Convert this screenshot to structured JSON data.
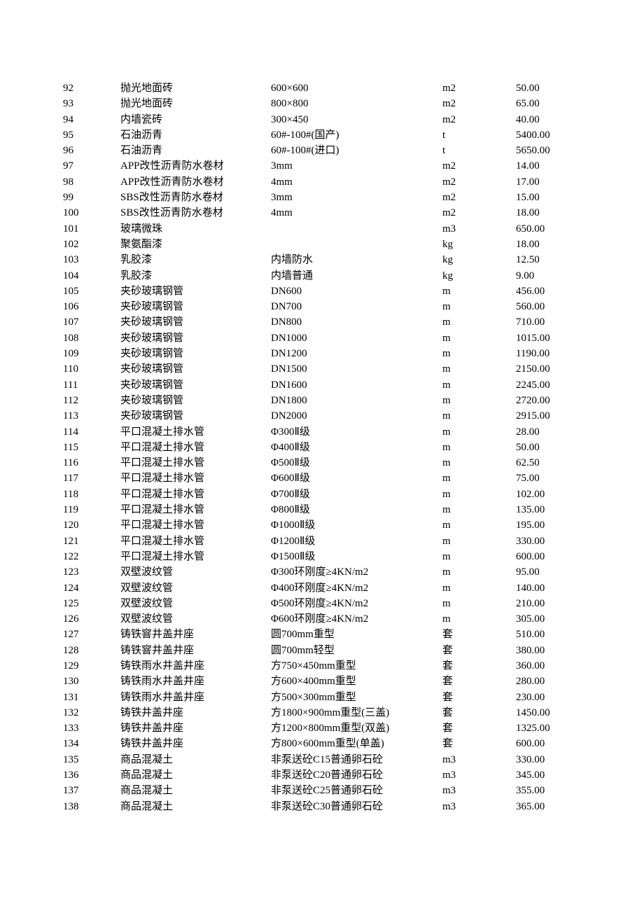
{
  "table": {
    "columns": [
      {
        "key": "id",
        "class": "col-id"
      },
      {
        "key": "name",
        "class": "col-name"
      },
      {
        "key": "spec",
        "class": "col-spec"
      },
      {
        "key": "unit",
        "class": "col-unit"
      },
      {
        "key": "price",
        "class": "col-price"
      }
    ],
    "rows": [
      {
        "id": "92",
        "name": "抛光地面砖",
        "spec": "600×600",
        "unit": "m2",
        "price": "50.00"
      },
      {
        "id": "93",
        "name": "抛光地面砖",
        "spec": "800×800",
        "unit": "m2",
        "price": "65.00"
      },
      {
        "id": "94",
        "name": "内墙瓷砖",
        "spec": "300×450",
        "unit": "m2",
        "price": "40.00"
      },
      {
        "id": "95",
        "name": "石油沥青",
        "spec": "60#-100#(国产)",
        "unit": "t",
        "price": "5400.00"
      },
      {
        "id": "96",
        "name": "石油沥青",
        "spec": "60#-100#(进口)",
        "unit": "t",
        "price": "5650.00"
      },
      {
        "id": "97",
        "name": "APP改性沥青防水卷材",
        "spec": "3mm",
        "unit": "m2",
        "price": "14.00"
      },
      {
        "id": "98",
        "name": "APP改性沥青防水卷材",
        "spec": "4mm",
        "unit": "m2",
        "price": "17.00"
      },
      {
        "id": "99",
        "name": "SBS改性沥青防水卷材",
        "spec": "3mm",
        "unit": "m2",
        "price": "15.00"
      },
      {
        "id": "100",
        "name": "SBS改性沥青防水卷材",
        "spec": "4mm",
        "unit": "m2",
        "price": "18.00"
      },
      {
        "id": "101",
        "name": "玻璃微珠",
        "spec": "",
        "unit": "m3",
        "price": "650.00"
      },
      {
        "id": "102",
        "name": "聚氨酯漆",
        "spec": "",
        "unit": "kg",
        "price": "18.00"
      },
      {
        "id": "103",
        "name": "乳胶漆",
        "spec": "内墙防水",
        "unit": "kg",
        "price": "12.50"
      },
      {
        "id": "104",
        "name": "乳胶漆",
        "spec": "内墙普通",
        "unit": "kg",
        "price": "9.00"
      },
      {
        "id": "105",
        "name": "夹砂玻璃钢管",
        "spec": "DN600",
        "unit": "m",
        "price": "456.00"
      },
      {
        "id": "106",
        "name": "夹砂玻璃钢管",
        "spec": "DN700",
        "unit": "m",
        "price": "560.00"
      },
      {
        "id": "107",
        "name": "夹砂玻璃钢管",
        "spec": "DN800",
        "unit": "m",
        "price": "710.00"
      },
      {
        "id": "108",
        "name": "夹砂玻璃钢管",
        "spec": "DN1000",
        "unit": "m",
        "price": "1015.00"
      },
      {
        "id": "109",
        "name": "夹砂玻璃钢管",
        "spec": "DN1200",
        "unit": "m",
        "price": "1190.00"
      },
      {
        "id": "110",
        "name": "夹砂玻璃钢管",
        "spec": "DN1500",
        "unit": "m",
        "price": "2150.00"
      },
      {
        "id": "111",
        "name": "夹砂玻璃钢管",
        "spec": "DN1600",
        "unit": "m",
        "price": "2245.00"
      },
      {
        "id": "112",
        "name": "夹砂玻璃钢管",
        "spec": "DN1800",
        "unit": "m",
        "price": "2720.00"
      },
      {
        "id": "113",
        "name": "夹砂玻璃钢管",
        "spec": "DN2000",
        "unit": "m",
        "price": "2915.00"
      },
      {
        "id": "114",
        "name": "平口混凝土排水管",
        "spec": "Φ300Ⅱ级",
        "unit": "m",
        "price": "28.00"
      },
      {
        "id": "115",
        "name": "平口混凝土排水管",
        "spec": "Φ400Ⅱ级",
        "unit": "m",
        "price": "50.00"
      },
      {
        "id": "116",
        "name": "平口混凝土排水管",
        "spec": "Φ500Ⅱ级",
        "unit": "m",
        "price": "62.50"
      },
      {
        "id": "117",
        "name": "平口混凝土排水管",
        "spec": "Φ600Ⅱ级",
        "unit": "m",
        "price": "75.00"
      },
      {
        "id": "118",
        "name": "平口混凝土排水管",
        "spec": "Φ700Ⅱ级",
        "unit": "m",
        "price": "102.00"
      },
      {
        "id": "119",
        "name": "平口混凝土排水管",
        "spec": "Φ800Ⅱ级",
        "unit": "m",
        "price": "135.00"
      },
      {
        "id": "120",
        "name": "平口混凝土排水管",
        "spec": "Φ1000Ⅱ级",
        "unit": "m",
        "price": "195.00"
      },
      {
        "id": "121",
        "name": "平口混凝土排水管",
        "spec": "Φ1200Ⅱ级",
        "unit": "m",
        "price": "330.00"
      },
      {
        "id": "122",
        "name": "平口混凝土排水管",
        "spec": "Φ1500Ⅱ级",
        "unit": "m",
        "price": "600.00"
      },
      {
        "id": "123",
        "name": "双壁波纹管",
        "spec": "Φ300环刚度≥4KN/m2",
        "unit": "m",
        "price": "95.00"
      },
      {
        "id": "124",
        "name": "双壁波纹管",
        "spec": "Φ400环刚度≥4KN/m2",
        "unit": "m",
        "price": "140.00"
      },
      {
        "id": "125",
        "name": "双壁波纹管",
        "spec": "Φ500环刚度≥4KN/m2",
        "unit": "m",
        "price": "210.00"
      },
      {
        "id": "126",
        "name": "双壁波纹管",
        "spec": "Φ600环刚度≥4KN/m2",
        "unit": "m",
        "price": "305.00"
      },
      {
        "id": "127",
        "name": "铸铁窨井盖井座",
        "spec": "圆700mm重型",
        "unit": "套",
        "price": "510.00"
      },
      {
        "id": "128",
        "name": "铸铁窨井盖井座",
        "spec": "圆700mm轻型",
        "unit": "套",
        "price": "380.00"
      },
      {
        "id": "129",
        "name": "铸铁雨水井盖井座",
        "spec": "方750×450mm重型",
        "unit": "套",
        "price": "360.00"
      },
      {
        "id": "130",
        "name": "铸铁雨水井盖井座",
        "spec": "方600×400mm重型",
        "unit": "套",
        "price": "280.00"
      },
      {
        "id": "131",
        "name": "铸铁雨水井盖井座",
        "spec": "方500×300mm重型",
        "unit": "套",
        "price": "230.00"
      },
      {
        "id": "132",
        "name": "铸铁井盖井座",
        "spec": "方1800×900mm重型(三盖)",
        "unit": "套",
        "price": "1450.00"
      },
      {
        "id": "133",
        "name": "铸铁井盖井座",
        "spec": "方1200×800mm重型(双盖)",
        "unit": "套",
        "price": "1325.00"
      },
      {
        "id": "134",
        "name": "铸铁井盖井座",
        "spec": "方800×600mm重型(单盖)",
        "unit": "套",
        "price": "600.00"
      },
      {
        "id": "135",
        "name": "商品混凝土",
        "spec": "非泵送砼C15普通卵石砼",
        "unit": "m3",
        "price": "330.00"
      },
      {
        "id": "136",
        "name": "商品混凝土",
        "spec": "非泵送砼C20普通卵石砼",
        "unit": "m3",
        "price": "345.00"
      },
      {
        "id": "137",
        "name": "商品混凝土",
        "spec": "非泵送砼C25普通卵石砼",
        "unit": "m3",
        "price": "355.00"
      },
      {
        "id": "138",
        "name": "商品混凝土",
        "spec": "非泵送砼C30普通卵石砼",
        "unit": "m3",
        "price": "365.00"
      }
    ]
  }
}
